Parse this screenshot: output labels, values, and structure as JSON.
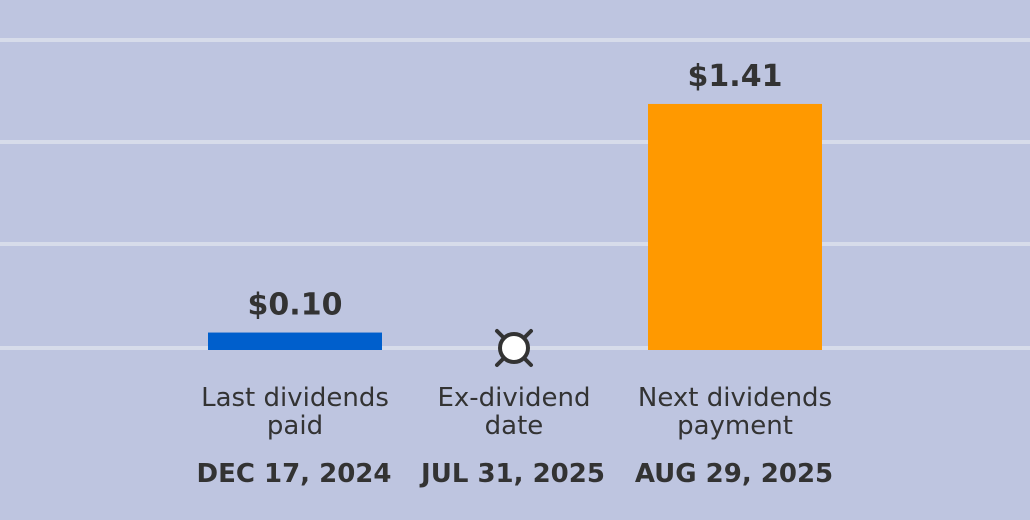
{
  "colors": {
    "background": "#bec5e0",
    "gridline": "#d7dcea",
    "text": "#333333",
    "last_dividend_bar": "#005fcc",
    "next_dividend_bar": "#ff9900",
    "marker_fill": "#ffffff",
    "marker_stroke": "#333333"
  },
  "chart_data": {
    "type": "bar",
    "grid": true,
    "ylim": [
      0,
      1.5
    ],
    "items": [
      {
        "kind": "bar",
        "category_lines": [
          "Last dividends",
          "paid"
        ],
        "date": "DEC 17, 2024",
        "value": 0.1,
        "value_label": "$0.10",
        "color": "#005fcc"
      },
      {
        "kind": "marker",
        "category_lines": [
          "Ex-dividend",
          "date"
        ],
        "date": "JUL 31, 2025",
        "icon": "clock-marker-icon"
      },
      {
        "kind": "bar",
        "category_lines": [
          "Next dividends",
          "payment"
        ],
        "date": "AUG 29, 2025",
        "value": 1.41,
        "value_label": "$1.41",
        "color": "#ff9900"
      }
    ]
  }
}
